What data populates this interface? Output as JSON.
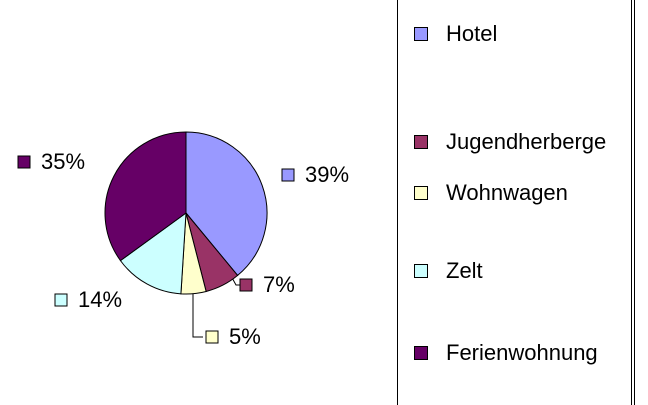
{
  "chart_data": {
    "type": "pie",
    "categories": [
      "Hotel",
      "Jugendherberge",
      "Wohnwagen",
      "Zelt",
      "Ferienwohnung"
    ],
    "values": [
      39,
      7,
      5,
      14,
      35
    ],
    "value_labels": [
      "39%",
      "7%",
      "5%",
      "14%",
      "35%"
    ],
    "colors": [
      "#9999ff",
      "#993366",
      "#ffffcc",
      "#ccffff",
      "#660066"
    ],
    "legend": "right"
  }
}
